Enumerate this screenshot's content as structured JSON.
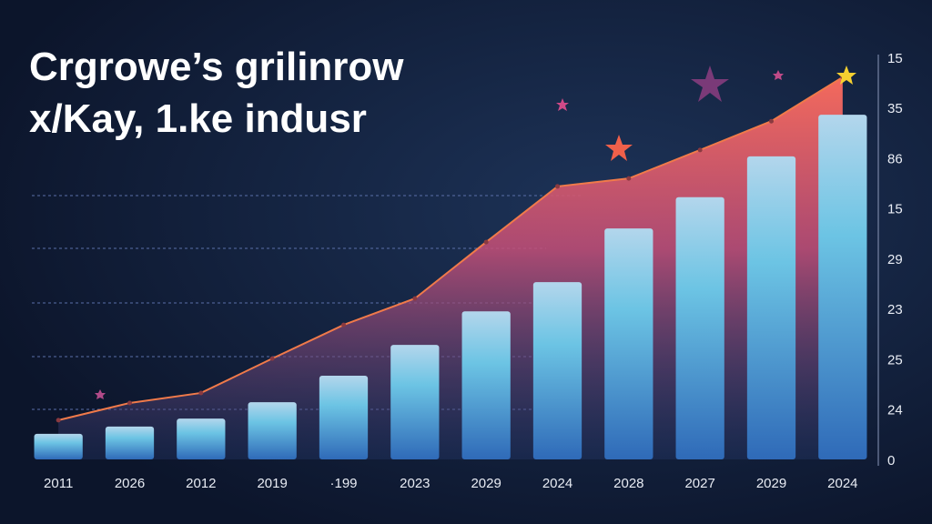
{
  "chart_data": {
    "type": "bar-area",
    "title": [
      "Crgrowe’s grilinrow",
      "x/Kay, 1.ke indusr"
    ],
    "categories": [
      "2011",
      "2026",
      "2012",
      "2019",
      "·199",
      "2023",
      "2029",
      "2024",
      "2028",
      "2027",
      "2029",
      "2024"
    ],
    "series": [
      {
        "kind": "bar",
        "color": "#6cc4e4",
        "values": [
          6.4,
          8.2,
          10.2,
          14.3,
          20.9,
          28.6,
          37,
          44.3,
          57.7,
          65.5,
          75.7,
          86.1
        ]
      },
      {
        "kind": "area",
        "color": "#f07a4a",
        "values": [
          9.8,
          14.1,
          16.6,
          25.2,
          33.6,
          40.2,
          54.3,
          68.2,
          70.2,
          77.3,
          84.5,
          95.5
        ]
      }
    ],
    "ylim": [
      0,
      100
    ],
    "y_axis_labels": [
      "15",
      "35",
      "86",
      "15",
      "29",
      "23",
      "25",
      "24",
      "0"
    ]
  }
}
